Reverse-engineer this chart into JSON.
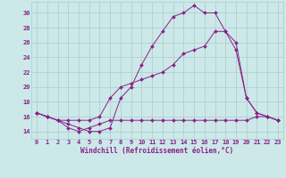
{
  "background_color": "#cce8e8",
  "grid_color": "#aacccc",
  "line_color": "#882288",
  "marker_color": "#882288",
  "xlabel": "Windchill (Refroidissement éolien,°C)",
  "xlim": [
    -0.5,
    23.5
  ],
  "ylim": [
    13.0,
    31.5
  ],
  "yticks": [
    14,
    16,
    18,
    20,
    22,
    24,
    26,
    28,
    30
  ],
  "xticks": [
    0,
    1,
    2,
    3,
    4,
    5,
    6,
    7,
    8,
    9,
    10,
    11,
    12,
    13,
    14,
    15,
    16,
    17,
    18,
    19,
    20,
    21,
    22,
    23
  ],
  "series1": {
    "x": [
      0,
      1,
      2,
      3,
      4,
      5,
      6,
      7,
      8,
      9,
      10,
      11,
      12,
      13,
      14,
      15,
      16,
      17,
      18,
      19,
      20,
      21,
      22,
      23
    ],
    "y": [
      16.5,
      16.0,
      15.5,
      15.0,
      14.5,
      14.0,
      14.0,
      14.5,
      18.5,
      20.0,
      23.0,
      25.5,
      27.5,
      29.5,
      30.0,
      31.0,
      30.0,
      30.0,
      27.5,
      26.0,
      18.5,
      16.5,
      16.0,
      15.5
    ]
  },
  "series2": {
    "x": [
      0,
      1,
      2,
      3,
      4,
      5,
      6,
      7,
      8,
      9,
      10,
      11,
      12,
      13,
      14,
      15,
      16,
      17,
      18,
      19,
      20,
      21,
      22,
      23
    ],
    "y": [
      16.5,
      16.0,
      15.5,
      15.5,
      15.5,
      15.5,
      16.0,
      18.5,
      20.0,
      20.5,
      21.0,
      21.5,
      22.0,
      23.0,
      24.5,
      25.0,
      25.5,
      27.5,
      27.5,
      25.0,
      18.5,
      16.5,
      16.0,
      15.5
    ]
  },
  "series3": {
    "x": [
      0,
      1,
      2,
      3,
      4,
      5,
      6,
      7,
      8,
      9,
      10,
      11,
      12,
      13,
      14,
      15,
      16,
      17,
      18,
      19,
      20,
      21,
      22,
      23
    ],
    "y": [
      16.5,
      16.0,
      15.5,
      14.5,
      14.0,
      14.5,
      15.0,
      15.5,
      15.5,
      15.5,
      15.5,
      15.5,
      15.5,
      15.5,
      15.5,
      15.5,
      15.5,
      15.5,
      15.5,
      15.5,
      15.5,
      16.0,
      16.0,
      15.5
    ]
  }
}
